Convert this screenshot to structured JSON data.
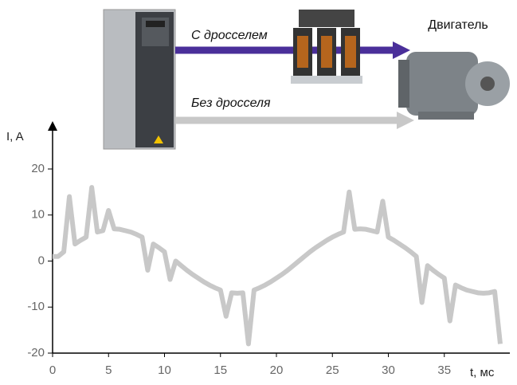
{
  "chart_data": {
    "type": "line",
    "annotations": {
      "with_choke": "С дросселем",
      "without_choke": "Без дросселя",
      "motor": "Двигатель"
    },
    "ylabel": "I, A",
    "xlabel": "t, мс",
    "x": [
      0,
      0.5,
      1,
      1.5,
      2,
      2.5,
      3,
      3.5,
      4,
      4.5,
      5,
      5.5,
      6,
      6.5,
      7,
      7.5,
      8,
      8.5,
      9,
      9.5,
      10,
      10.5,
      11,
      11.5,
      12,
      12.5,
      13,
      13.5,
      14,
      14.5,
      15,
      15.5,
      16,
      16.5,
      17,
      17.5,
      18,
      18.5,
      19,
      19.5,
      20,
      20.5,
      21,
      21.5,
      22,
      22.5,
      23,
      23.5,
      24,
      24.5,
      25,
      25.5,
      26,
      26.5,
      27,
      27.5,
      28,
      28.5,
      29,
      29.5,
      30,
      30.5,
      31,
      31.5,
      32,
      32.5,
      33,
      33.5,
      34,
      34.5,
      35,
      35.5,
      36,
      36.5,
      37,
      37.5,
      38,
      38.5,
      39,
      39.5,
      40
    ],
    "values": [
      1,
      1,
      2,
      14,
      3.7,
      4.5,
      5.2,
      16,
      6.3,
      6.6,
      11,
      7,
      6.9,
      6.6,
      6.3,
      5.8,
      5.2,
      -2,
      3.7,
      2.9,
      2,
      -4,
      0,
      -1,
      -2,
      -2.9,
      -3.7,
      -4.5,
      -5.2,
      -5.8,
      -6.3,
      -12,
      -6.9,
      -7,
      -6.9,
      -18,
      -6.3,
      -5.8,
      -5.2,
      -4.5,
      -3.7,
      -2.9,
      -2,
      -1,
      0,
      1,
      2,
      2.9,
      3.7,
      4.5,
      5.2,
      5.8,
      6.3,
      15,
      6.9,
      7,
      6.9,
      6.6,
      6.3,
      13,
      5.2,
      4.5,
      3.7,
      2.9,
      2,
      1,
      -9,
      -1,
      -2,
      -2.9,
      -3.7,
      -13,
      -5.2,
      -5.8,
      -6.3,
      -6.6,
      -6.9,
      -7,
      -6.9,
      -6.6,
      -18
    ],
    "color": "#c8c8c8",
    "xlim": [
      0,
      40
    ],
    "ylim": [
      -20,
      20
    ],
    "xticks": [
      0,
      5,
      10,
      15,
      20,
      25,
      30,
      35
    ],
    "yticks": [
      -20,
      -10,
      0,
      10,
      20
    ]
  }
}
